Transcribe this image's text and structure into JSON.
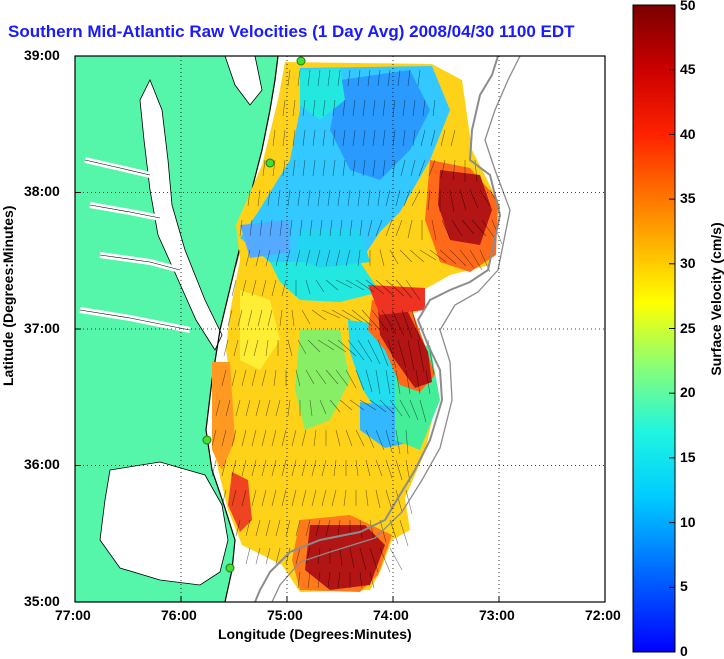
{
  "title": "Southern Mid-Atlantic Raw Velocities (1 Day Avg) 2008/04/30 1100 EDT",
  "x_axis": {
    "label": "Longitude (Degrees:Minutes)",
    "ticks": [
      "77:00",
      "76:00",
      "75:00",
      "74:00",
      "73:00",
      "72:00"
    ]
  },
  "y_axis": {
    "label": "Latitude (Degrees:Minutes)",
    "ticks": [
      "39:00",
      "38:00",
      "37:00",
      "36:00",
      "35:00"
    ]
  },
  "colorbar": {
    "label": "Surface Velocity (cm/s)",
    "min": 0,
    "max": 50,
    "ticks": [
      "0",
      "5",
      "10",
      "15",
      "20",
      "25",
      "30",
      "35",
      "40",
      "45",
      "50"
    ]
  },
  "colors": {
    "land": "#55f5aa",
    "title": "#1a1aff",
    "coast": "#000000",
    "bathymetry": "#8c8c8c",
    "site_marker": "#44dd33"
  }
}
